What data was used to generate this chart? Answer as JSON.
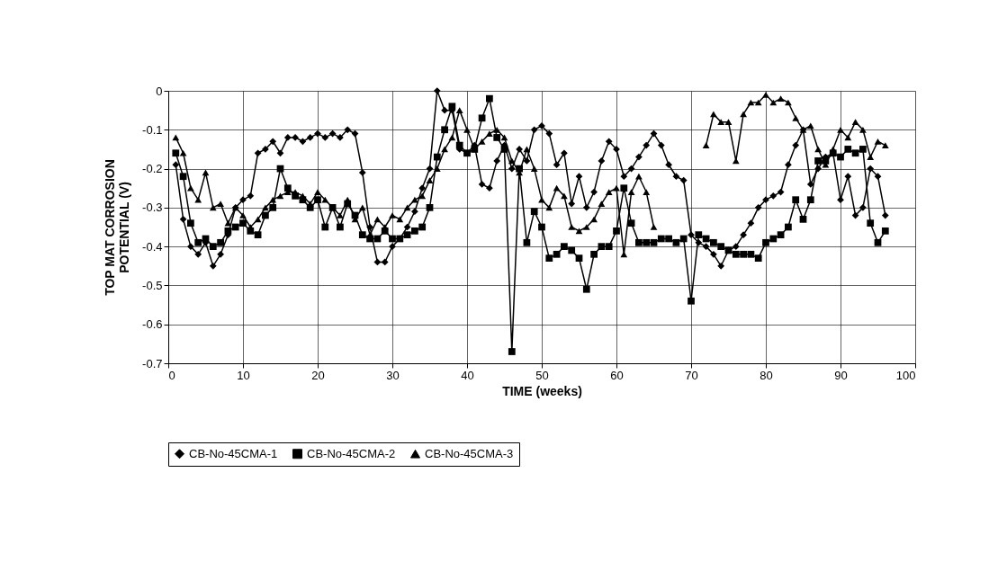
{
  "chart_data": {
    "type": "line",
    "xlabel": "TIME (weeks)",
    "ylabel": "TOP MAT CORROSION\nPOTENTIAL (V)",
    "x": [
      1,
      2,
      3,
      4,
      5,
      6,
      7,
      8,
      9,
      10,
      11,
      12,
      13,
      14,
      15,
      16,
      17,
      18,
      19,
      20,
      21,
      22,
      23,
      24,
      25,
      26,
      27,
      28,
      29,
      30,
      31,
      32,
      33,
      34,
      35,
      36,
      37,
      38,
      39,
      40,
      41,
      42,
      43,
      44,
      45,
      46,
      47,
      48,
      49,
      50,
      51,
      52,
      53,
      54,
      55,
      56,
      57,
      58,
      59,
      60,
      61,
      62,
      63,
      64,
      65,
      66,
      67,
      68,
      69,
      70,
      71,
      72,
      73,
      74,
      75,
      76,
      77,
      78,
      79,
      80,
      81,
      82,
      83,
      84,
      85,
      86,
      87,
      88,
      89,
      90,
      91,
      92,
      93,
      94,
      95,
      96
    ],
    "series": [
      {
        "name": "CB-No-45CMA-1",
        "color": "#000000",
        "marker": "diamond",
        "values": [
          -0.19,
          -0.33,
          -0.4,
          -0.42,
          -0.39,
          -0.45,
          -0.42,
          -0.37,
          -0.3,
          -0.28,
          -0.27,
          -0.16,
          -0.15,
          -0.13,
          -0.16,
          -0.12,
          -0.12,
          -0.13,
          -0.12,
          -0.11,
          -0.12,
          -0.11,
          -0.12,
          -0.1,
          -0.11,
          -0.21,
          -0.35,
          -0.44,
          -0.44,
          -0.4,
          -0.38,
          -0.35,
          -0.31,
          -0.25,
          -0.2,
          0,
          -0.05,
          -0.05,
          -0.15,
          -0.16,
          -0.14,
          -0.24,
          -0.25,
          -0.18,
          -0.14,
          -0.2,
          -0.15,
          -0.18,
          -0.1,
          -0.09,
          -0.11,
          -0.19,
          -0.16,
          -0.29,
          -0.22,
          -0.3,
          -0.26,
          -0.18,
          -0.13,
          -0.15,
          -0.22,
          -0.2,
          -0.17,
          -0.14,
          -0.11,
          -0.14,
          -0.19,
          -0.22,
          -0.23,
          -0.37,
          -0.39,
          -0.4,
          -0.42,
          -0.45,
          -0.41,
          -0.4,
          -0.37,
          -0.34,
          -0.3,
          -0.28,
          -0.27,
          -0.26,
          -0.19,
          -0.14,
          -0.1,
          -0.24,
          -0.2,
          -0.17,
          -0.16,
          -0.28,
          -0.22,
          -0.32,
          -0.3,
          -0.2,
          -0.22,
          -0.32
        ]
      },
      {
        "name": "CB-No-45CMA-2",
        "color": "#000000",
        "marker": "square",
        "values": [
          -0.16,
          -0.22,
          -0.34,
          -0.39,
          -0.38,
          -0.4,
          -0.39,
          -0.36,
          -0.35,
          -0.34,
          -0.36,
          -0.37,
          -0.32,
          -0.3,
          -0.2,
          -0.25,
          -0.27,
          -0.28,
          -0.3,
          -0.28,
          -0.35,
          -0.3,
          -0.35,
          -0.29,
          -0.32,
          -0.37,
          -0.38,
          -0.38,
          -0.36,
          -0.38,
          -0.38,
          -0.37,
          -0.36,
          -0.35,
          -0.3,
          -0.17,
          -0.1,
          -0.04,
          -0.14,
          -0.16,
          -0.15,
          -0.07,
          -0.02,
          -0.12,
          -0.15,
          -0.67,
          -0.2,
          -0.39,
          -0.31,
          -0.35,
          -0.43,
          -0.42,
          -0.4,
          -0.41,
          -0.43,
          -0.51,
          -0.42,
          -0.4,
          -0.4,
          -0.36,
          -0.25,
          -0.34,
          -0.39,
          -0.39,
          -0.39,
          -0.38,
          -0.38,
          -0.39,
          -0.38,
          -0.54,
          -0.37,
          -0.38,
          -0.39,
          -0.4,
          -0.41,
          -0.42,
          -0.42,
          -0.42,
          -0.43,
          -0.39,
          -0.38,
          -0.37,
          -0.35,
          -0.28,
          -0.33,
          -0.28,
          -0.18,
          -0.18,
          -0.16,
          -0.17,
          -0.15,
          -0.16,
          -0.15,
          -0.34,
          -0.39,
          -0.36
        ]
      },
      {
        "name": "CB-No-45CMA-3",
        "color": "#000000",
        "marker": "triangle",
        "values": [
          -0.12,
          -0.16,
          -0.25,
          -0.28,
          -0.21,
          -0.3,
          -0.29,
          -0.34,
          -0.3,
          -0.32,
          -0.35,
          -0.33,
          -0.3,
          -0.28,
          -0.27,
          -0.26,
          -0.26,
          -0.27,
          -0.29,
          -0.26,
          -0.28,
          -0.3,
          -0.32,
          -0.28,
          -0.33,
          -0.3,
          -0.37,
          -0.33,
          -0.35,
          -0.32,
          -0.33,
          -0.3,
          -0.28,
          -0.27,
          -0.23,
          -0.2,
          -0.15,
          -0.12,
          -0.05,
          -0.1,
          -0.15,
          -0.13,
          -0.11,
          -0.1,
          -0.12,
          -0.18,
          -0.21,
          -0.15,
          -0.2,
          -0.28,
          -0.3,
          -0.25,
          -0.27,
          -0.35,
          -0.36,
          -0.35,
          -0.33,
          -0.29,
          -0.26,
          -0.25,
          -0.42,
          -0.26,
          -0.22,
          -0.26,
          -0.35,
          null,
          null,
          null,
          null,
          null,
          null,
          -0.14,
          -0.06,
          -0.08,
          -0.08,
          -0.18,
          -0.06,
          -0.03,
          -0.03,
          -0.01,
          -0.03,
          -0.02,
          -0.03,
          -0.07,
          -0.1,
          -0.09,
          -0.15,
          -0.19,
          -0.15,
          -0.1,
          -0.12,
          -0.08,
          -0.1,
          -0.17,
          -0.13,
          -0.14
        ]
      }
    ],
    "xlim": [
      0,
      100
    ],
    "xticks": [
      0,
      10,
      20,
      30,
      40,
      50,
      60,
      70,
      80,
      90,
      100
    ],
    "ylim": [
      -0.7,
      0
    ],
    "yticks": [
      -0.7,
      -0.6,
      -0.5,
      -0.4,
      -0.3,
      -0.2,
      -0.1,
      0
    ],
    "grid": true,
    "legend": "bottom",
    "line_style": "solid"
  }
}
